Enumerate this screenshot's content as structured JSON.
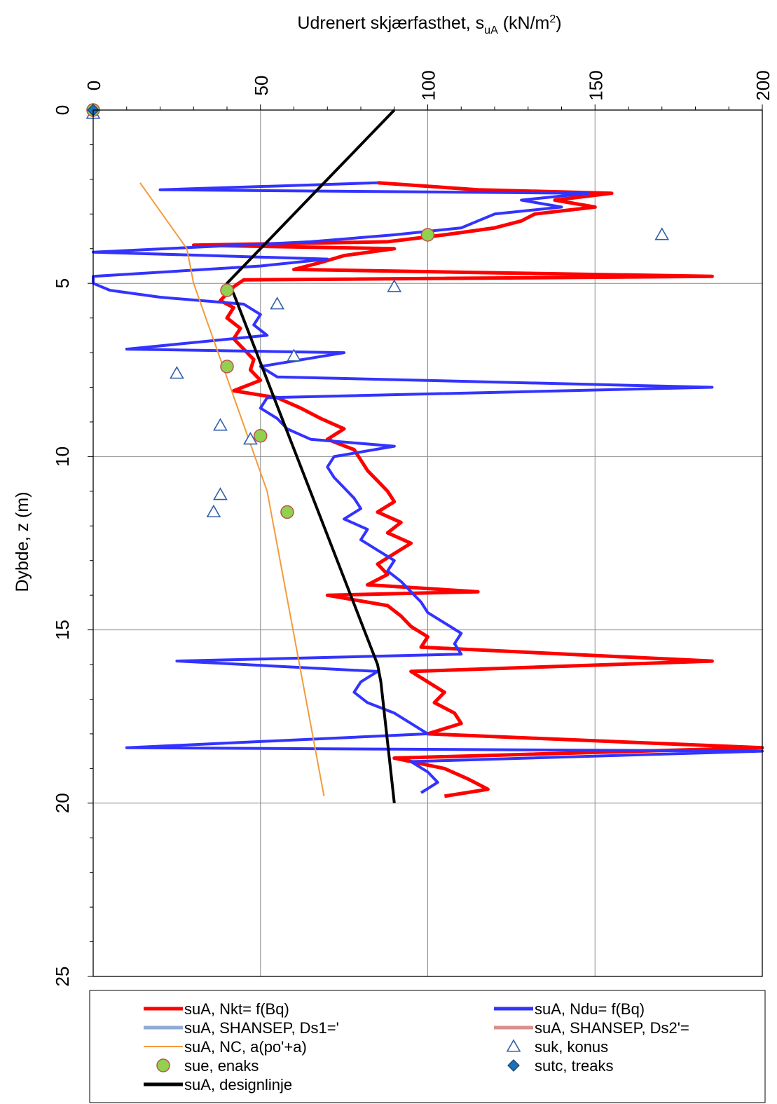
{
  "chart_data": {
    "type": "line",
    "title": "",
    "x_axis": {
      "label_main": "Udrenert skjærfasthet, s",
      "label_sub": "uA",
      "label_unit_pre": " (kN/m",
      "label_sup": "2",
      "label_unit_post": ")",
      "range": [
        0,
        200
      ],
      "ticks": [
        "0",
        "50",
        "100",
        "150",
        "200"
      ],
      "position": "top"
    },
    "y_axis": {
      "label": "Dybde, z (m)",
      "range": [
        0,
        25
      ],
      "inverted": true,
      "ticks": [
        "0",
        "5",
        "10",
        "15",
        "20",
        "25"
      ]
    },
    "grid": true,
    "legend_position": "bottom",
    "series": [
      {
        "name": "suA, Nkt= f(Bq)",
        "kind": "line",
        "color": "#ff0000",
        "points": [
          [
            85,
            2.1
          ],
          [
            115,
            2.3
          ],
          [
            155,
            2.4
          ],
          [
            138,
            2.6
          ],
          [
            150,
            2.8
          ],
          [
            132,
            3.0
          ],
          [
            128,
            3.2
          ],
          [
            120,
            3.4
          ],
          [
            105,
            3.6
          ],
          [
            88,
            3.8
          ],
          [
            30,
            3.9
          ],
          [
            90,
            4.0
          ],
          [
            75,
            4.2
          ],
          [
            68,
            4.4
          ],
          [
            60,
            4.6
          ],
          [
            185,
            4.8
          ],
          [
            45,
            4.9
          ],
          [
            42,
            5.1
          ],
          [
            40,
            5.3
          ],
          [
            38,
            5.5
          ],
          [
            42,
            5.7
          ],
          [
            40,
            6.0
          ],
          [
            44,
            6.3
          ],
          [
            42,
            6.6
          ],
          [
            45,
            6.9
          ],
          [
            48,
            7.2
          ],
          [
            47,
            7.5
          ],
          [
            50,
            7.8
          ],
          [
            42,
            8.1
          ],
          [
            55,
            8.3
          ],
          [
            62,
            8.6
          ],
          [
            68,
            8.9
          ],
          [
            75,
            9.2
          ],
          [
            70,
            9.5
          ],
          [
            78,
            9.8
          ],
          [
            80,
            10.1
          ],
          [
            82,
            10.4
          ],
          [
            85,
            10.7
          ],
          [
            88,
            11.0
          ],
          [
            90,
            11.3
          ],
          [
            85,
            11.6
          ],
          [
            92,
            11.9
          ],
          [
            88,
            12.2
          ],
          [
            95,
            12.5
          ],
          [
            90,
            12.8
          ],
          [
            85,
            13.1
          ],
          [
            88,
            13.4
          ],
          [
            82,
            13.7
          ],
          [
            115,
            13.9
          ],
          [
            70,
            14.0
          ],
          [
            88,
            14.3
          ],
          [
            92,
            14.6
          ],
          [
            95,
            14.9
          ],
          [
            100,
            15.2
          ],
          [
            98,
            15.5
          ],
          [
            185,
            15.9
          ],
          [
            95,
            16.2
          ],
          [
            100,
            16.5
          ],
          [
            105,
            16.8
          ],
          [
            102,
            17.1
          ],
          [
            108,
            17.4
          ],
          [
            110,
            17.7
          ],
          [
            100,
            18.0
          ],
          [
            200,
            18.4
          ],
          [
            90,
            18.7
          ],
          [
            105,
            19.0
          ],
          [
            112,
            19.3
          ],
          [
            118,
            19.6
          ],
          [
            105,
            19.8
          ]
        ]
      },
      {
        "name": "suA, Ndu= f(Bq)",
        "kind": "line",
        "color": "#3333ff",
        "points": [
          [
            85,
            2.1
          ],
          [
            20,
            2.3
          ],
          [
            148,
            2.4
          ],
          [
            128,
            2.6
          ],
          [
            140,
            2.8
          ],
          [
            120,
            3.0
          ],
          [
            115,
            3.2
          ],
          [
            110,
            3.4
          ],
          [
            90,
            3.6
          ],
          [
            65,
            3.8
          ],
          [
            0,
            4.1
          ],
          [
            70,
            4.3
          ],
          [
            50,
            4.5
          ],
          [
            0,
            4.8
          ],
          [
            0,
            5.0
          ],
          [
            5,
            5.2
          ],
          [
            20,
            5.4
          ],
          [
            45,
            5.6
          ],
          [
            50,
            5.9
          ],
          [
            48,
            6.2
          ],
          [
            52,
            6.5
          ],
          [
            10,
            6.9
          ],
          [
            75,
            7.0
          ],
          [
            50,
            7.4
          ],
          [
            55,
            7.7
          ],
          [
            185,
            8.0
          ],
          [
            52,
            8.3
          ],
          [
            50,
            8.6
          ],
          [
            55,
            8.9
          ],
          [
            58,
            9.2
          ],
          [
            65,
            9.5
          ],
          [
            90,
            9.7
          ],
          [
            72,
            10.0
          ],
          [
            70,
            10.3
          ],
          [
            72,
            10.6
          ],
          [
            75,
            10.9
          ],
          [
            78,
            11.2
          ],
          [
            80,
            11.5
          ],
          [
            75,
            11.8
          ],
          [
            82,
            12.1
          ],
          [
            80,
            12.4
          ],
          [
            85,
            12.7
          ],
          [
            90,
            13.0
          ],
          [
            88,
            13.3
          ],
          [
            92,
            13.6
          ],
          [
            95,
            13.9
          ],
          [
            98,
            14.2
          ],
          [
            100,
            14.5
          ],
          [
            105,
            14.8
          ],
          [
            110,
            15.1
          ],
          [
            108,
            15.4
          ],
          [
            110,
            15.7
          ],
          [
            25,
            15.9
          ],
          [
            85,
            16.2
          ],
          [
            80,
            16.5
          ],
          [
            78,
            16.8
          ],
          [
            82,
            17.1
          ],
          [
            90,
            17.4
          ],
          [
            95,
            17.7
          ],
          [
            100,
            18.0
          ],
          [
            10,
            18.4
          ],
          [
            200,
            18.5
          ],
          [
            95,
            18.8
          ],
          [
            100,
            19.1
          ],
          [
            103,
            19.4
          ],
          [
            98,
            19.7
          ]
        ]
      },
      {
        "name": "suA, SHANSEP, Ds1='",
        "kind": "line",
        "color": "#8fabd3",
        "points": []
      },
      {
        "name": "suA, SHANSEP, Ds2'=",
        "kind": "line",
        "color": "#d9908c",
        "points": []
      },
      {
        "name": "suA, NC, a(po'+a)",
        "kind": "line",
        "color": "#f59a3a",
        "points": [
          [
            14,
            2.1
          ],
          [
            28,
            4.0
          ],
          [
            30,
            5.0
          ],
          [
            52,
            11.0
          ],
          [
            69,
            19.8
          ]
        ]
      },
      {
        "name": "suk, konus",
        "kind": "triangle",
        "color": "#2f5ea8",
        "points": [
          [
            0,
            0.1
          ],
          [
            170,
            3.6
          ],
          [
            90,
            5.1
          ],
          [
            55,
            5.6
          ],
          [
            60,
            7.1
          ],
          [
            25,
            7.6
          ],
          [
            38,
            9.1
          ],
          [
            47,
            9.5
          ],
          [
            38,
            11.1
          ],
          [
            36,
            11.6
          ]
        ]
      },
      {
        "name": "sue, enaks",
        "kind": "circle",
        "color": "#92d050",
        "stroke": "#c0504d",
        "points": [
          [
            0,
            0
          ],
          [
            100,
            3.6
          ],
          [
            40,
            5.2
          ],
          [
            40,
            7.4
          ],
          [
            50,
            9.4
          ],
          [
            58,
            11.6
          ]
        ]
      },
      {
        "name": "sutc, treaks",
        "kind": "diamond",
        "color": "#1f6fb5",
        "points": [
          [
            0,
            0
          ]
        ]
      },
      {
        "name": "suA, designlinje",
        "kind": "line",
        "color": "#000000",
        "points": [
          [
            90,
            0
          ],
          [
            40,
            5
          ],
          [
            42,
            5.3
          ],
          [
            85,
            16
          ],
          [
            86,
            16.5
          ],
          [
            90,
            20
          ]
        ]
      }
    ]
  }
}
